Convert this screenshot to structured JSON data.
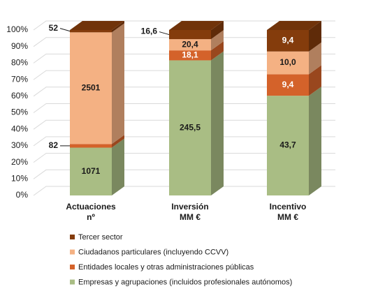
{
  "chart_data": {
    "type": "stacked_bar_3d",
    "normalize": true,
    "categories": [
      [
        "Actuaciones",
        "nº"
      ],
      [
        "Inversión",
        "MM €"
      ],
      [
        "Incentivo",
        "MM €"
      ]
    ],
    "series": [
      {
        "name": "Empresas y agrupaciones (incluidos profesionales autónomos)",
        "color": "#a9bd84",
        "label_color": "#1a1a1a",
        "values": [
          1071,
          245.5,
          43.7
        ],
        "value_labels": [
          "1071",
          "245,5",
          "43,7"
        ]
      },
      {
        "name": "Entidades locales y otras administraciones públicas",
        "color": "#d4622a",
        "label_color": "#ffffff",
        "values": [
          82,
          18.1,
          9.4
        ],
        "value_labels": [
          "82",
          "18,1",
          "9,4"
        ]
      },
      {
        "name": "Ciudadanos particulares (incluyendo CCVV)",
        "color": "#f4b183",
        "label_color": "#1a1a1a",
        "values": [
          2501,
          20.4,
          10.0
        ],
        "value_labels": [
          "2501",
          "20,4",
          "10,0"
        ]
      },
      {
        "name": "Tercer sector",
        "color": "#843c0c",
        "label_color": "#ffffff",
        "values": [
          52,
          16.6,
          9.4
        ],
        "value_labels": [
          "52",
          "16,6",
          "9,4"
        ]
      }
    ],
    "ylim": [
      0,
      100
    ],
    "yticks": [
      {
        "value": 0,
        "label": "0%"
      },
      {
        "value": 10,
        "label": "10%"
      },
      {
        "value": 20,
        "label": "20%"
      },
      {
        "value": 30,
        "label": "30%"
      },
      {
        "value": 40,
        "label": "40%"
      },
      {
        "value": 50,
        "label": "50%"
      },
      {
        "value": 60,
        "label": "60%"
      },
      {
        "value": 70,
        "label": "70%"
      },
      {
        "value": 80,
        "label": "80%"
      },
      {
        "value": 90,
        "label": "90%"
      },
      {
        "value": 100,
        "label": "100%"
      }
    ],
    "grid": true,
    "legend": "bottom-left"
  }
}
